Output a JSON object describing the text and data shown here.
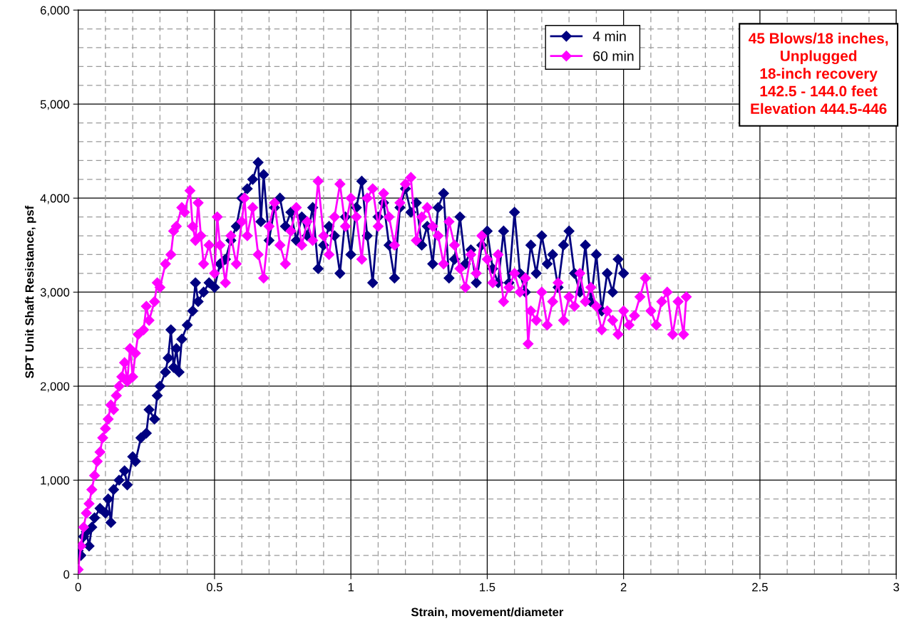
{
  "chart_data": {
    "type": "line",
    "xlabel": "Strain, movement/diameter",
    "ylabel": "SPT Unit Shaft Resistance, psf",
    "xlim": [
      0,
      3
    ],
    "xticks": [
      0,
      0.5,
      1,
      1.5,
      2,
      2.5,
      3
    ],
    "ylim": [
      0,
      6000
    ],
    "yticks": [
      {
        "value": 0,
        "label": "0"
      },
      {
        "value": 1000,
        "label": "1,000"
      },
      {
        "value": 2000,
        "label": "2,000"
      },
      {
        "value": 3000,
        "label": "3,000"
      },
      {
        "value": 4000,
        "label": "4,000"
      },
      {
        "value": 5000,
        "label": "5,000"
      },
      {
        "value": 6000,
        "label": "6,000"
      }
    ],
    "grid": true,
    "legend": "top right",
    "marker": "diamond",
    "line_style": "solid",
    "annotations": [
      "45 Blows/18 inches,\nUnplugged\n18-inch recovery\n142.5 - 144.0 feet\nElevation 444.5-446"
    ],
    "series": [
      {
        "name": "4 min",
        "color": "#000080",
        "x": [
          0,
          0.01,
          0.02,
          0.03,
          0.04,
          0.05,
          0.06,
          0.08,
          0.1,
          0.11,
          0.12,
          0.13,
          0.15,
          0.17,
          0.18,
          0.2,
          0.21,
          0.23,
          0.25,
          0.26,
          0.28,
          0.29,
          0.3,
          0.32,
          0.33,
          0.34,
          0.35,
          0.36,
          0.37,
          0.38,
          0.4,
          0.42,
          0.43,
          0.44,
          0.46,
          0.48,
          0.5,
          0.52,
          0.54,
          0.56,
          0.58,
          0.6,
          0.62,
          0.64,
          0.66,
          0.67,
          0.68,
          0.7,
          0.72,
          0.74,
          0.76,
          0.78,
          0.8,
          0.82,
          0.84,
          0.86,
          0.88,
          0.9,
          0.92,
          0.94,
          0.96,
          0.98,
          1.0,
          1.02,
          1.04,
          1.06,
          1.08,
          1.1,
          1.12,
          1.14,
          1.16,
          1.18,
          1.2,
          1.22,
          1.24,
          1.26,
          1.28,
          1.3,
          1.32,
          1.34,
          1.36,
          1.38,
          1.4,
          1.42,
          1.44,
          1.46,
          1.48,
          1.5,
          1.52,
          1.54,
          1.56,
          1.58,
          1.6,
          1.62,
          1.64,
          1.66,
          1.68,
          1.7,
          1.72,
          1.74,
          1.76,
          1.78,
          1.8,
          1.82,
          1.84,
          1.86,
          1.88,
          1.9,
          1.92,
          1.94,
          1.96,
          1.98,
          2.0
        ],
        "values": [
          250,
          200,
          400,
          450,
          300,
          500,
          600,
          700,
          650,
          800,
          550,
          900,
          1000,
          1100,
          950,
          1250,
          1200,
          1450,
          1500,
          1750,
          1650,
          1900,
          2000,
          2150,
          2300,
          2600,
          2200,
          2400,
          2150,
          2500,
          2650,
          2800,
          3100,
          2900,
          3000,
          3100,
          3050,
          3300,
          3350,
          3550,
          3700,
          4000,
          4100,
          4200,
          4380,
          3750,
          4250,
          3550,
          3900,
          4000,
          3700,
          3850,
          3550,
          3800,
          3600,
          3900,
          3250,
          3500,
          3700,
          3600,
          3200,
          3800,
          3400,
          3900,
          4180,
          3600,
          3100,
          3800,
          3950,
          3500,
          3150,
          3900,
          4100,
          3850,
          3950,
          3500,
          3700,
          3300,
          3900,
          4050,
          3150,
          3350,
          3800,
          3300,
          3450,
          3100,
          3500,
          3650,
          3250,
          3100,
          3650,
          3100,
          3850,
          3200,
          3000,
          3500,
          3200,
          3600,
          3300,
          3400,
          3050,
          3500,
          3650,
          3200,
          3000,
          3500,
          2900,
          3400,
          2800,
          3200,
          3000,
          3350,
          3200
        ]
      },
      {
        "name": "60 min",
        "color": "#ff00ff",
        "x": [
          0,
          0.01,
          0.02,
          0.03,
          0.04,
          0.05,
          0.06,
          0.07,
          0.08,
          0.09,
          0.1,
          0.11,
          0.12,
          0.13,
          0.14,
          0.15,
          0.16,
          0.17,
          0.18,
          0.19,
          0.2,
          0.21,
          0.22,
          0.24,
          0.25,
          0.26,
          0.28,
          0.29,
          0.3,
          0.32,
          0.34,
          0.35,
          0.36,
          0.38,
          0.39,
          0.41,
          0.42,
          0.43,
          0.44,
          0.45,
          0.46,
          0.48,
          0.5,
          0.51,
          0.52,
          0.54,
          0.56,
          0.58,
          0.6,
          0.61,
          0.62,
          0.64,
          0.66,
          0.68,
          0.7,
          0.72,
          0.74,
          0.76,
          0.78,
          0.8,
          0.82,
          0.84,
          0.86,
          0.88,
          0.9,
          0.92,
          0.94,
          0.96,
          0.98,
          1.0,
          1.02,
          1.04,
          1.06,
          1.08,
          1.1,
          1.12,
          1.14,
          1.16,
          1.18,
          1.2,
          1.22,
          1.24,
          1.26,
          1.28,
          1.3,
          1.32,
          1.34,
          1.36,
          1.38,
          1.4,
          1.42,
          1.44,
          1.46,
          1.48,
          1.5,
          1.52,
          1.54,
          1.56,
          1.58,
          1.6,
          1.62,
          1.64,
          1.65,
          1.66,
          1.68,
          1.7,
          1.72,
          1.74,
          1.76,
          1.78,
          1.8,
          1.82,
          1.84,
          1.86,
          1.88,
          1.9,
          1.92,
          1.94,
          1.96,
          1.98,
          2.0,
          2.02,
          2.04,
          2.06,
          2.08,
          2.1,
          2.12,
          2.14,
          2.16,
          2.18,
          2.2,
          2.22,
          2.23
        ],
        "values": [
          50,
          300,
          500,
          650,
          750,
          900,
          1050,
          1200,
          1300,
          1450,
          1550,
          1650,
          1800,
          1750,
          1900,
          2000,
          2100,
          2250,
          2050,
          2400,
          2100,
          2350,
          2550,
          2600,
          2850,
          2700,
          2900,
          3100,
          3050,
          3300,
          3400,
          3650,
          3700,
          3900,
          3850,
          4080,
          3700,
          3550,
          3950,
          3600,
          3300,
          3500,
          3200,
          3800,
          3500,
          3100,
          3600,
          3300,
          3750,
          4000,
          3600,
          3900,
          3400,
          3150,
          3700,
          3950,
          3500,
          3300,
          3650,
          3900,
          3500,
          3750,
          3550,
          4180,
          3600,
          3400,
          3800,
          4150,
          3700,
          4000,
          3800,
          3350,
          4000,
          4100,
          3700,
          4050,
          3800,
          3500,
          3950,
          4150,
          4220,
          3550,
          3800,
          3900,
          3700,
          3600,
          3300,
          3750,
          3500,
          3250,
          3050,
          3400,
          3200,
          3600,
          3350,
          3100,
          3400,
          2900,
          3050,
          3200,
          3000,
          3150,
          2450,
          2800,
          2700,
          3000,
          2650,
          2900,
          3100,
          2700,
          2950,
          2850,
          3200,
          2900,
          3050,
          2850,
          2600,
          2800,
          2700,
          2550,
          2800,
          2650,
          2750,
          2950,
          3150,
          2800,
          2650,
          2900,
          3000,
          2550,
          2900,
          2550,
          2950
        ]
      }
    ]
  }
}
